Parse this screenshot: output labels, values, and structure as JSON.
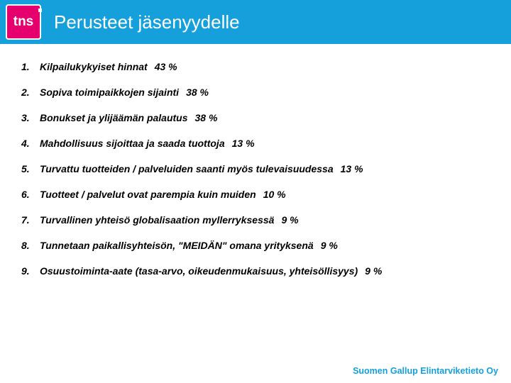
{
  "colors": {
    "header_bg": "#15a0dc",
    "logo_bg": "#e5006d",
    "footer": "#15a0dc",
    "text": "#000000"
  },
  "header": {
    "logo_text": "tns",
    "title": "Perusteet jäsenyydelle"
  },
  "items": [
    {
      "n": "1.",
      "label": "Kilpailukykyiset hinnat",
      "pct": "43 %"
    },
    {
      "n": "2.",
      "label": "Sopiva toimipaikkojen sijainti",
      "pct": "38 %"
    },
    {
      "n": "3.",
      "label": "Bonukset ja ylijäämän palautus",
      "pct": " 38 %"
    },
    {
      "n": "4.",
      "label": "Mahdollisuus sijoittaa ja saada tuottoja",
      "pct": "13 %"
    },
    {
      "n": "5.",
      "label": "Turvattu tuotteiden / palveluiden saanti myös tulevaisuudessa",
      "pct": "13 %"
    },
    {
      "n": "6.",
      "label": "Tuotteet / palvelut ovat parempia kuin muiden",
      "pct": "10 %"
    },
    {
      "n": "7.",
      "label": "Turvallinen yhteisö globalisaation myllerryksessä",
      "pct": "9 %"
    },
    {
      "n": "8.",
      "label": "Tunnetaan paikallisyhteisön, \"MEIDÄN\" omana yrityksenä",
      "pct": "9 %"
    },
    {
      "n": "9.",
      "label": "Osuustoiminta-aate (tasa-arvo, oikeudenmukaisuus, yhteisöllisyys)",
      "pct": "9 %"
    }
  ],
  "footer": "Suomen Gallup Elintarviketieto Oy"
}
